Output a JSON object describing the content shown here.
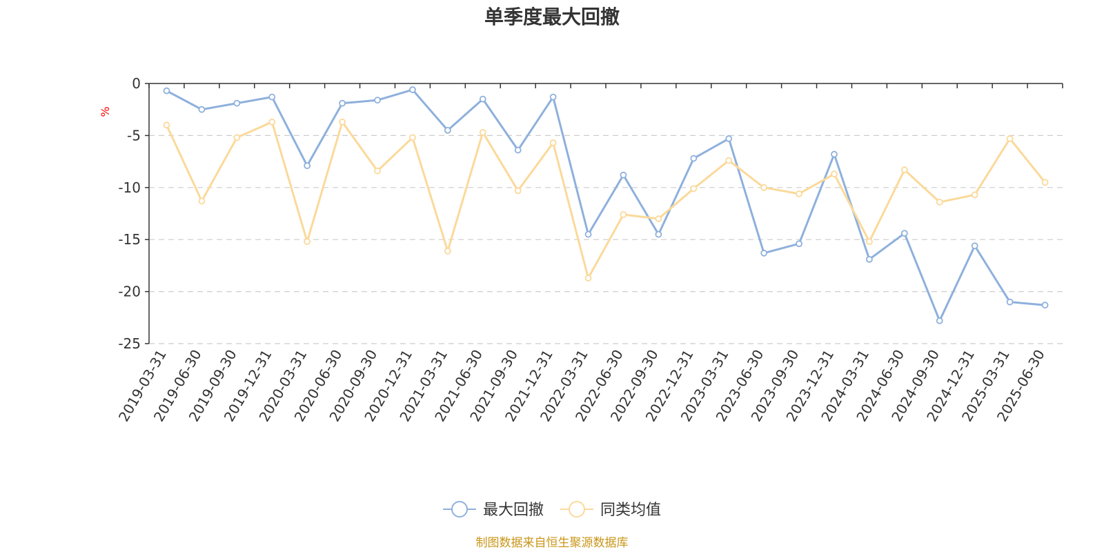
{
  "chart_data": {
    "type": "line",
    "title": "单季度最大回撤",
    "ylabel": "%",
    "xlabel": "",
    "ylim": [
      -25,
      0
    ],
    "yticks": [
      0,
      -5,
      -10,
      -15,
      -20,
      -25
    ],
    "grid": true,
    "legend_position": "bottom-center",
    "categories": [
      "2019-03-31",
      "2019-06-30",
      "2019-09-30",
      "2019-12-31",
      "2020-03-31",
      "2020-06-30",
      "2020-09-30",
      "2020-12-31",
      "2021-03-31",
      "2021-06-30",
      "2021-09-30",
      "2021-12-31",
      "2022-03-31",
      "2022-06-30",
      "2022-09-30",
      "2022-12-31",
      "2023-03-31",
      "2023-06-30",
      "2023-09-30",
      "2023-12-31",
      "2024-03-31",
      "2024-06-30",
      "2024-09-30",
      "2024-12-31",
      "2025-03-31",
      "2025-06-30"
    ],
    "series": [
      {
        "name": "最大回撤",
        "color": "#8eb0dc",
        "values": [
          -0.7,
          -2.5,
          -1.9,
          -1.3,
          -7.9,
          -1.9,
          -1.6,
          -0.6,
          -4.5,
          -1.5,
          -6.4,
          -1.3,
          -14.5,
          -8.8,
          -14.5,
          -7.2,
          -5.3,
          -16.3,
          -15.4,
          -6.8,
          -16.9,
          -14.4,
          -22.8,
          -15.6,
          -21.0,
          -21.3
        ]
      },
      {
        "name": "同类均值",
        "color": "#fbd99a",
        "values": [
          -4.0,
          -11.3,
          -5.2,
          -3.7,
          -15.2,
          -3.7,
          -8.4,
          -5.2,
          -16.1,
          -4.7,
          -10.3,
          -5.7,
          -18.7,
          -12.6,
          -13.0,
          -10.1,
          -7.4,
          -10.0,
          -10.6,
          -8.7,
          -15.2,
          -8.3,
          -11.4,
          -10.7,
          -5.3,
          -9.5
        ]
      }
    ]
  },
  "source_note": "制图数据来自恒生聚源数据库"
}
